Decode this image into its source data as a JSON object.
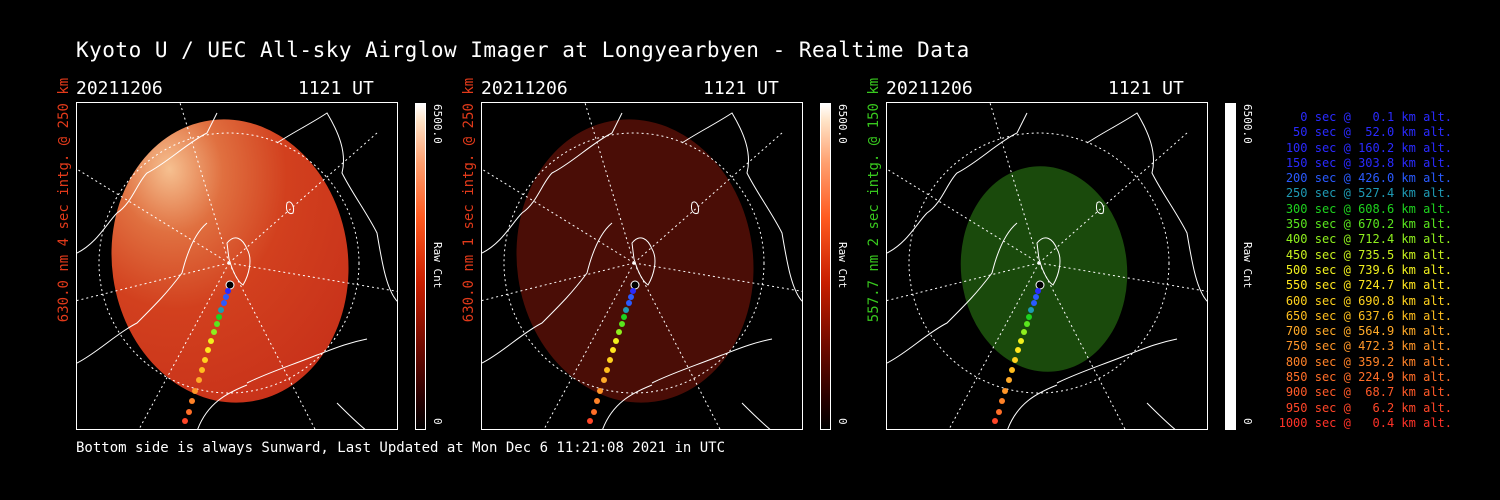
{
  "title": "Kyoto U / UEC All-sky Airglow Imager at Longyearbyen - Realtime Data",
  "footer": "Bottom side is always Sunward, Last Updated at Mon Dec  6 11:21:08 2021 in UTC",
  "panels": [
    {
      "date": "20211206",
      "time": "1121 UT",
      "ylabel": "630.0 nm 4 sec intg. @ 250 km",
      "cmax": "6500.0",
      "cunit": "Raw Cnt",
      "cmin": "0",
      "label_color": "#e23a1a"
    },
    {
      "date": "20211206",
      "time": "1121 UT",
      "ylabel": "630.0 nm 1 sec intg. @ 250 km",
      "cmax": "6500.0",
      "cunit": "Raw Cnt",
      "cmin": "0",
      "label_color": "#e23a1a"
    },
    {
      "date": "20211206",
      "time": "1121 UT",
      "ylabel": "557.7 nm 2 sec intg. @ 150 km",
      "cmax": "6500.0",
      "cunit": "Raw Cnt",
      "cmin": "0",
      "label_color": "#38c81e"
    }
  ],
  "legend": [
    {
      "text": "0 sec @   0.1 km alt.",
      "color": "#2a2aff"
    },
    {
      "text": "50 sec @  52.0 km alt.",
      "color": "#2a2aff"
    },
    {
      "text": "100 sec @ 160.2 km alt.",
      "color": "#2a2aff"
    },
    {
      "text": "150 sec @ 303.8 km alt.",
      "color": "#2a2aff"
    },
    {
      "text": "200 sec @ 426.0 km alt.",
      "color": "#2a5aff"
    },
    {
      "text": "250 sec @ 527.4 km alt.",
      "color": "#1e9ab4"
    },
    {
      "text": "300 sec @ 608.6 km alt.",
      "color": "#1ed21e"
    },
    {
      "text": "350 sec @ 670.2 km alt.",
      "color": "#5ae61e"
    },
    {
      "text": "400 sec @ 712.4 km alt.",
      "color": "#8ef01e"
    },
    {
      "text": "450 sec @ 735.5 km alt.",
      "color": "#c8f01e"
    },
    {
      "text": "500 sec @ 739.6 km alt.",
      "color": "#f0f01e"
    },
    {
      "text": "550 sec @ 724.7 km alt.",
      "color": "#ffe61e"
    },
    {
      "text": "600 sec @ 690.8 km alt.",
      "color": "#ffd21e"
    },
    {
      "text": "650 sec @ 637.6 km alt.",
      "color": "#ffbe1e"
    },
    {
      "text": "700 sec @ 564.9 km alt.",
      "color": "#ffaa28"
    },
    {
      "text": "750 sec @ 472.3 km alt.",
      "color": "#ff9628"
    },
    {
      "text": "800 sec @ 359.2 km alt.",
      "color": "#ff8228"
    },
    {
      "text": "850 sec @ 224.9 km alt.",
      "color": "#ff6e28"
    },
    {
      "text": "900 sec @  68.7 km alt.",
      "color": "#ff5a28"
    },
    {
      "text": "950 sec @   6.2 km alt.",
      "color": "#ff4628"
    },
    {
      "text": "1000 sec @   0.4 km alt.",
      "color": "#ff3228"
    }
  ]
}
